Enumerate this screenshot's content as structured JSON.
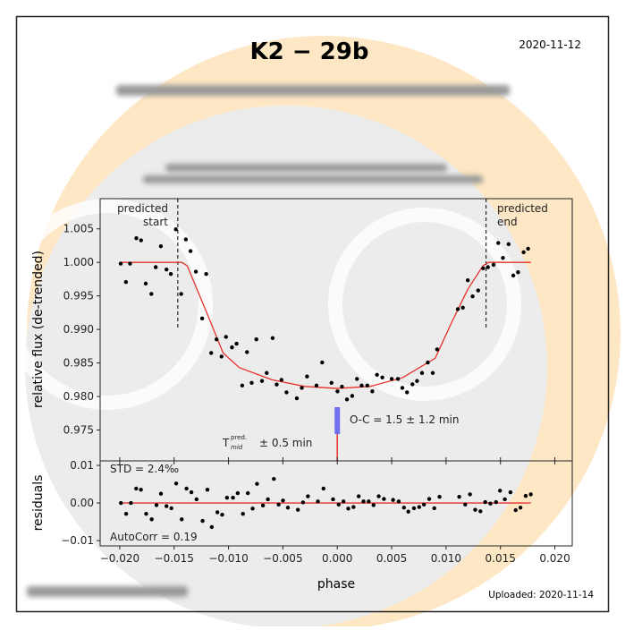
{
  "header": {
    "title": "K2 − 29b",
    "date": "2020-11-12",
    "uploaded": "Uploaded: 2020-11-14"
  },
  "colors": {
    "model": "#e8302a",
    "oc_bar": "#7070ee",
    "watermark_ring": "#fde7c4",
    "watermark_disc": "#ececec"
  },
  "chart_data": [
    {
      "type": "scatter",
      "ylabel": "relative flux (de-trended)",
      "xlim": [
        -0.0218,
        0.0216
      ],
      "ylim": [
        0.9704,
        1.0095
      ],
      "yticks": [
        "1.005",
        "1.000",
        "0.995",
        "0.990",
        "0.985",
        "0.980",
        "0.975"
      ],
      "ytick_values": [
        1.005,
        1.0,
        0.995,
        0.99,
        0.985,
        0.98,
        0.975
      ],
      "annotations": {
        "predicted_start": "predicted\nstart",
        "predicted_end": "predicted\nend",
        "predicted_start_phase": -0.01466,
        "predicted_end_phase": 0.01368,
        "oc_text": "O-C = 1.5 ± 1.2 min",
        "tmid_T": "T",
        "tmid_sup": "pred.",
        "tmid_sub": "mid",
        "tmid_err": "± 0.5 min"
      },
      "points": {
        "phase": [
          -0.01991,
          -0.01943,
          -0.01905,
          -0.01847,
          -0.01804,
          -0.01761,
          -0.01709,
          -0.01669,
          -0.01622,
          -0.0157,
          -0.0153,
          -0.01484,
          -0.01435,
          -0.01392,
          -0.01349,
          -0.013,
          -0.01242,
          -0.01205,
          -0.01159,
          -0.0111,
          -0.01064,
          -0.01023,
          -0.00968,
          -0.00926,
          -0.00874,
          -0.0083,
          -0.00787,
          -0.00744,
          -0.00692,
          -0.00649,
          -0.00594,
          -0.00557,
          -0.00513,
          -0.00467,
          -0.00372,
          -0.00326,
          -0.00278,
          -0.00191,
          -0.00139,
          -0.00053,
          2e-05,
          0.00043,
          0.00089,
          0.00137,
          0.00181,
          0.00224,
          0.00276,
          0.00322,
          0.00365,
          0.00414,
          0.005,
          0.00558,
          0.00598,
          0.00641,
          0.00691,
          0.00733,
          0.00779,
          0.00832,
          0.00878,
          0.00918,
          0.01108,
          0.01154,
          0.012,
          0.01244,
          0.01295,
          0.01341,
          0.01385,
          0.01437,
          0.0148,
          0.01523,
          0.01575,
          0.01618,
          0.01662,
          0.01713,
          0.01754
        ],
        "flux": [
          0.99982,
          0.99707,
          0.99982,
          1.0036,
          1.00329,
          0.99684,
          0.99529,
          0.99929,
          1.0024,
          0.99893,
          0.99827,
          1.00493,
          0.99529,
          1.00342,
          1.00169,
          0.99862,
          0.99164,
          0.99827,
          0.98649,
          0.98853,
          0.98596,
          0.98889,
          0.98733,
          0.98787,
          0.98164,
          0.98662,
          0.98204,
          0.98853,
          0.98231,
          0.98351,
          0.98871,
          0.98178,
          0.98249,
          0.98062,
          0.97973,
          0.98129,
          0.98298,
          0.98164,
          0.98507,
          0.98204,
          0.98076,
          0.98147,
          0.97956,
          0.98009,
          0.98262,
          0.98164,
          0.98164,
          0.98076,
          0.98324,
          0.98284,
          0.98262,
          0.98262,
          0.98129,
          0.98062,
          0.98182,
          0.98231,
          0.98351,
          0.98507,
          0.98351,
          0.98702,
          0.99302,
          0.99324,
          0.99733,
          0.99493,
          0.99582,
          0.99911,
          0.99929,
          0.99964,
          1.00289,
          1.00067,
          1.00271,
          0.99804,
          0.99853,
          1.00151,
          1.00204
        ]
      },
      "model": {
        "phase": [
          -0.0199,
          -0.0143,
          -0.0138,
          -0.012,
          -0.0105,
          -0.009,
          -0.006,
          -0.003,
          0.0,
          0.003,
          0.006,
          0.009,
          0.0105,
          0.012,
          0.0134,
          0.0139,
          0.0178
        ],
        "flux": [
          1.0,
          1.0,
          0.9995,
          0.9925,
          0.9865,
          0.9843,
          0.9825,
          0.9815,
          0.9812,
          0.9815,
          0.9828,
          0.9857,
          0.991,
          0.996,
          0.9995,
          1.0,
          1.0
        ]
      }
    },
    {
      "type": "scatter",
      "xlabel": "phase",
      "ylabel": "residuals",
      "xlim": [
        -0.0218,
        0.0216
      ],
      "ylim": [
        -0.0114,
        0.0112
      ],
      "xticks": [
        "−0.020",
        "−0.015",
        "−0.010",
        "−0.005",
        "0.000",
        "0.005",
        "0.010",
        "0.015",
        "0.020"
      ],
      "xtick_values": [
        -0.02,
        -0.015,
        -0.01,
        -0.005,
        0.0,
        0.005,
        0.01,
        0.015,
        0.02
      ],
      "yticks": [
        "0.01",
        "0.00",
        "−0.01"
      ],
      "ytick_values": [
        0.01,
        0.0,
        -0.01
      ],
      "std_text": "STD = 2.4‰",
      "autocorr_text": "AutoCorr = 0.19",
      "points": {
        "phase": [
          -0.01989,
          -0.01941,
          -0.01897,
          -0.01849,
          -0.01805,
          -0.01757,
          -0.01706,
          -0.01662,
          -0.01621,
          -0.0157,
          -0.01525,
          -0.01481,
          -0.0143,
          -0.01386,
          -0.01341,
          -0.01294,
          -0.01238,
          -0.01194,
          -0.01154,
          -0.01102,
          -0.01058,
          -0.01014,
          -0.00959,
          -0.00915,
          -0.00867,
          -0.00822,
          -0.00778,
          -0.00738,
          -0.00683,
          -0.00638,
          -0.00583,
          -0.00539,
          -0.00499,
          -0.00454,
          -0.00362,
          -0.00315,
          -0.0027,
          -0.00178,
          -0.00127,
          -0.00039,
          0.00013,
          0.00057,
          0.00101,
          0.00149,
          0.00197,
          0.00241,
          0.00289,
          0.00333,
          0.00381,
          0.00429,
          0.00513,
          0.00565,
          0.00613,
          0.00653,
          0.00705,
          0.00753,
          0.00797,
          0.00845,
          0.00892,
          0.0094,
          0.01121,
          0.01176,
          0.0122,
          0.01268,
          0.01316,
          0.0136,
          0.01408,
          0.01459,
          0.01496,
          0.0154,
          0.01592,
          0.0164,
          0.01684,
          0.01732,
          0.01779
        ],
        "residual": [
          0,
          -0.00287,
          0,
          0.00385,
          0.00353,
          -0.00287,
          -0.00435,
          -0.00057,
          0.00246,
          -0.00082,
          -0.00139,
          0.00517,
          -0.00435,
          0.00385,
          0.00287,
          0.00098,
          -0.00476,
          0.00353,
          -0.0064,
          -0.00246,
          -0.00312,
          0.00139,
          0.00139,
          0.00262,
          -0.00287,
          0.00262,
          -0.00148,
          0.00508,
          -0.00066,
          0.00098,
          0.0064,
          -0.00041,
          0.00066,
          -0.00123,
          -0.0018,
          0.00016,
          0.0018,
          0.00041,
          0.00385,
          0.00098,
          -0.00041,
          0.00041,
          -0.00148,
          -0.00107,
          0.0018,
          0.00041,
          0.00041,
          -0.00057,
          0.0018,
          0.00107,
          0.00082,
          0.00041,
          -0.00123,
          -0.0023,
          -0.00139,
          -0.00107,
          -0.00041,
          0.00107,
          -0.00139,
          0.00164,
          0.00164,
          -0.00041,
          0.0023,
          -0.0018,
          -0.00221,
          0.00025,
          -0.00016,
          0.00025,
          0.00328,
          0.00098,
          0.00287,
          -0.00189,
          -0.00123,
          0.00189,
          0.0023
        ]
      }
    }
  ]
}
